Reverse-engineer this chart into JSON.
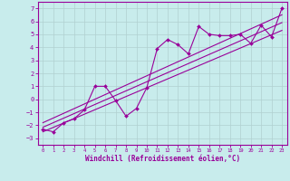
{
  "xlabel": "Windchill (Refroidissement éolien,°C)",
  "background_color": "#c8ecec",
  "grid_color": "#b0d0d0",
  "line_color": "#990099",
  "x_data": [
    0,
    1,
    2,
    3,
    4,
    5,
    6,
    7,
    8,
    9,
    10,
    11,
    12,
    13,
    14,
    15,
    16,
    17,
    18,
    19,
    20,
    21,
    22,
    23
  ],
  "y_scatter": [
    -2.3,
    -2.5,
    -1.8,
    -1.5,
    -0.8,
    1.0,
    1.0,
    -0.1,
    -1.3,
    -0.7,
    0.9,
    3.9,
    4.6,
    4.2,
    3.5,
    5.6,
    5.0,
    4.9,
    4.9,
    5.0,
    4.3,
    5.7,
    4.8,
    7.0
  ],
  "reg_line1_x": [
    0,
    23
  ],
  "reg_line1_y": [
    -2.5,
    5.3
  ],
  "reg_line2_x": [
    0,
    23
  ],
  "reg_line2_y": [
    -1.8,
    6.5
  ],
  "reg_line3_x": [
    0,
    23
  ],
  "reg_line3_y": [
    -2.15,
    5.9
  ],
  "xlim": [
    -0.5,
    23.5
  ],
  "ylim": [
    -3.5,
    7.5
  ],
  "xticks": [
    0,
    1,
    2,
    3,
    4,
    5,
    6,
    7,
    8,
    9,
    10,
    11,
    12,
    13,
    14,
    15,
    16,
    17,
    18,
    19,
    20,
    21,
    22,
    23
  ],
  "yticks": [
    -3,
    -2,
    -1,
    0,
    1,
    2,
    3,
    4,
    5,
    6,
    7
  ]
}
